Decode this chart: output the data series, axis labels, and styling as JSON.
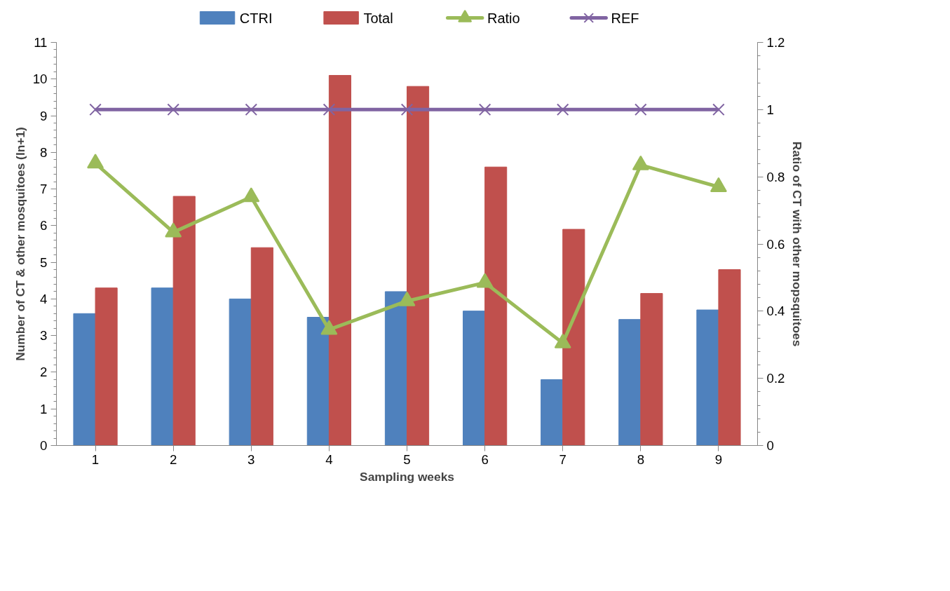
{
  "chart_data": {
    "type": "bar",
    "xlabel": "Sampling weeks",
    "ylabel": "Number of CT & other mosquitoes (ln+1)",
    "y2label": "Ratio of CT with other mopsquitoes",
    "categories": [
      "1",
      "2",
      "3",
      "4",
      "5",
      "6",
      "7",
      "8",
      "9"
    ],
    "series": [
      {
        "name": "CTRI",
        "color": "#4f81bd",
        "values": [
          3.6,
          4.3,
          4.0,
          3.5,
          4.2,
          3.67,
          1.8,
          3.44,
          3.7
        ]
      },
      {
        "name": "Total",
        "color": "#c0504d",
        "values": [
          4.3,
          6.8,
          5.4,
          10.1,
          9.8,
          7.6,
          5.9,
          4.15,
          4.8
        ]
      },
      {
        "name": "Ratio",
        "type": "line",
        "axis": "y2",
        "marker": "triangle",
        "color": "#9bbb59",
        "values": [
          0.84,
          0.635,
          0.74,
          0.345,
          0.43,
          0.485,
          0.305,
          0.835,
          0.77
        ]
      },
      {
        "name": "REF",
        "type": "line",
        "axis": "y2",
        "marker": "cross",
        "color": "#8064a2",
        "values": [
          1,
          1,
          1,
          1,
          1,
          1,
          1,
          1,
          1
        ]
      }
    ],
    "ylim": [
      0,
      11
    ],
    "yticks": [
      0,
      1,
      2,
      3,
      4,
      5,
      6,
      7,
      8,
      9,
      10,
      11
    ],
    "y2lim": [
      0,
      1.2
    ],
    "y2ticks": [
      0,
      0.2,
      0.4,
      0.6,
      0.8,
      1,
      1.2
    ],
    "grid": false,
    "legend": "top"
  }
}
